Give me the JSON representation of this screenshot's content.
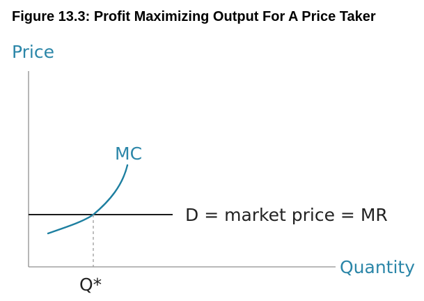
{
  "figure": {
    "title": "Figure 13.3: Profit Maximizing Output For A Price Taker"
  },
  "axes": {
    "y_label": "Price",
    "x_label": "Quantity"
  },
  "curves": {
    "mc_label": "MC",
    "price_line_label": "D = market price = MR"
  },
  "markers": {
    "q_star_label": "Q*"
  },
  "colors": {
    "accent_blue": "#1d7fa0",
    "label_blue": "#2b86a8",
    "price_line": "#1a1a1a",
    "axis": "#8f8f8f"
  }
}
